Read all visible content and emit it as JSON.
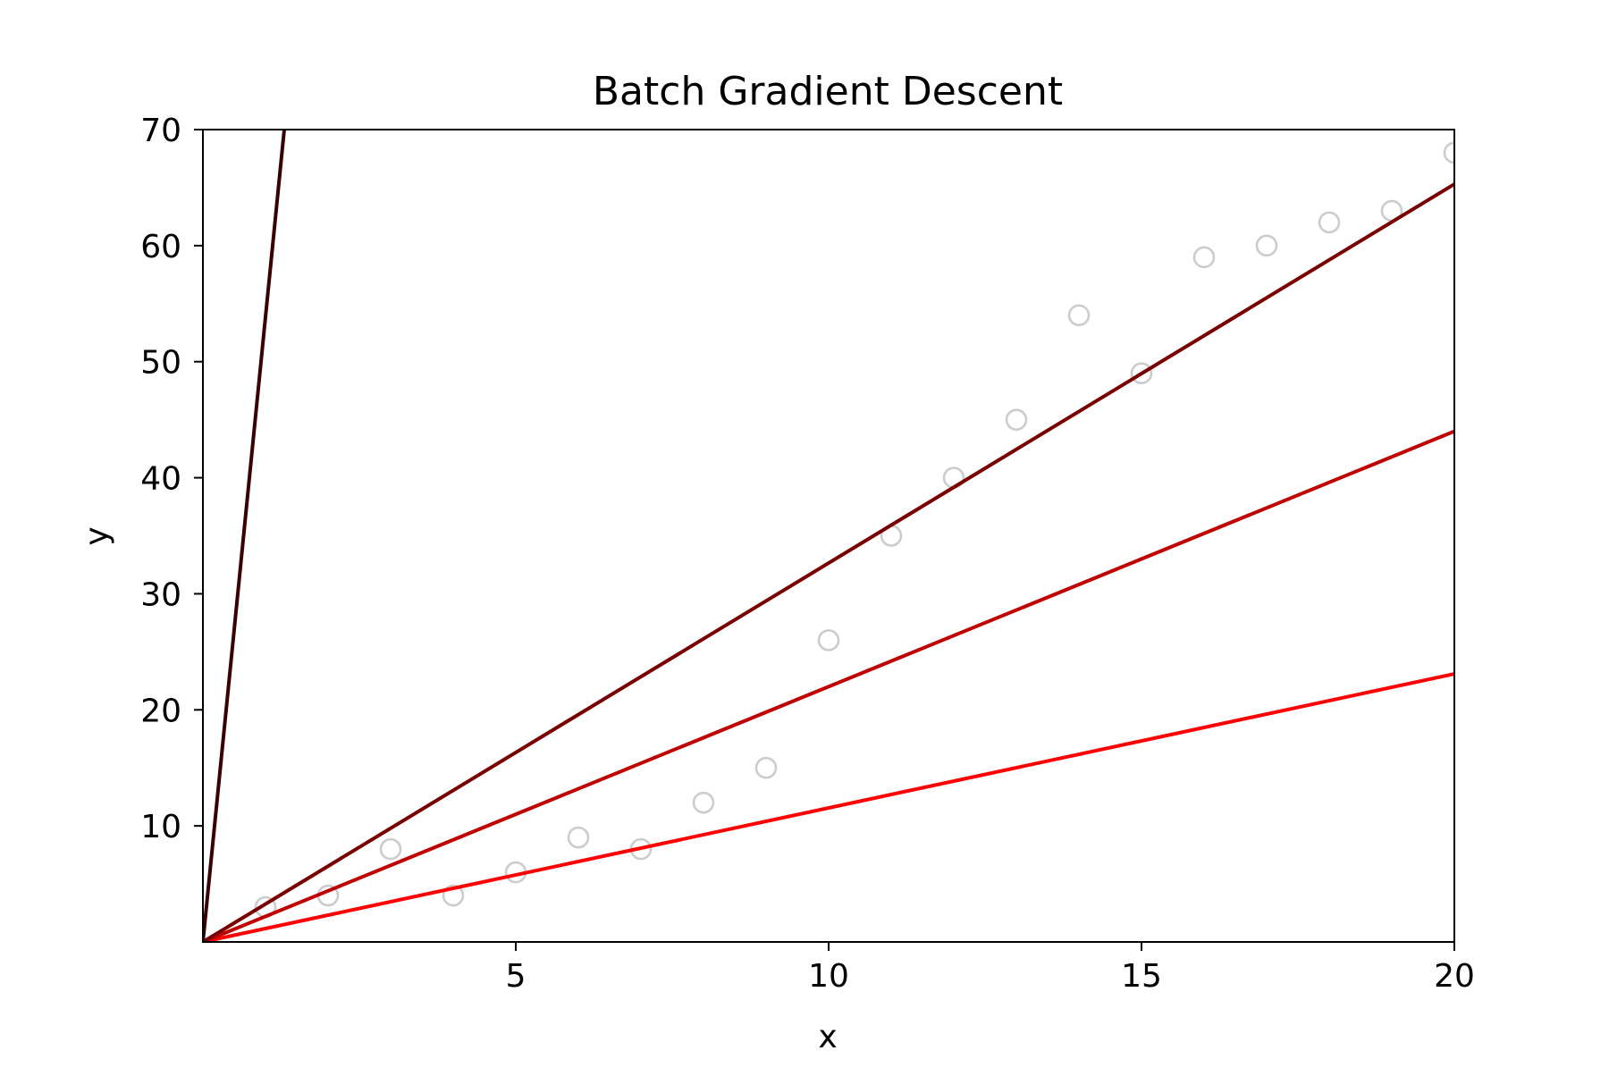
{
  "chart_data": {
    "type": "scatter",
    "title": "Batch Gradient Descent",
    "xlabel": "x",
    "ylabel": "y",
    "xlim": [
      0,
      20
    ],
    "ylim": [
      0,
      70
    ],
    "x_ticks": [
      5,
      10,
      15,
      20
    ],
    "y_ticks": [
      10,
      20,
      30,
      40,
      50,
      60,
      70
    ],
    "grid": false,
    "legend": "none",
    "scatter": {
      "color": "#cccccc",
      "marker": "open-circle",
      "points": [
        {
          "x": 1,
          "y": 3
        },
        {
          "x": 2,
          "y": 4
        },
        {
          "x": 3,
          "y": 8
        },
        {
          "x": 4,
          "y": 4
        },
        {
          "x": 5,
          "y": 6
        },
        {
          "x": 6,
          "y": 9
        },
        {
          "x": 7,
          "y": 8
        },
        {
          "x": 8,
          "y": 12
        },
        {
          "x": 9,
          "y": 15
        },
        {
          "x": 10,
          "y": 26
        },
        {
          "x": 11,
          "y": 35
        },
        {
          "x": 12,
          "y": 40
        },
        {
          "x": 13,
          "y": 45
        },
        {
          "x": 14,
          "y": 54
        },
        {
          "x": 15,
          "y": 49
        },
        {
          "x": 16,
          "y": 59
        },
        {
          "x": 17,
          "y": 60
        },
        {
          "x": 18,
          "y": 62
        },
        {
          "x": 19,
          "y": 63
        },
        {
          "x": 20,
          "y": 68
        }
      ]
    },
    "fit_lines": [
      {
        "color": "#ff0000",
        "x": [
          0,
          20
        ],
        "y": [
          0,
          23.1
        ]
      },
      {
        "color": "#c00000",
        "x": [
          0,
          20
        ],
        "y": [
          0,
          44.0
        ]
      },
      {
        "color": "#7a0000",
        "x": [
          0,
          20
        ],
        "y": [
          0,
          65.3
        ]
      },
      {
        "color": "#3a0000",
        "x": [
          0,
          1.3
        ],
        "y": [
          0,
          70
        ]
      }
    ]
  }
}
